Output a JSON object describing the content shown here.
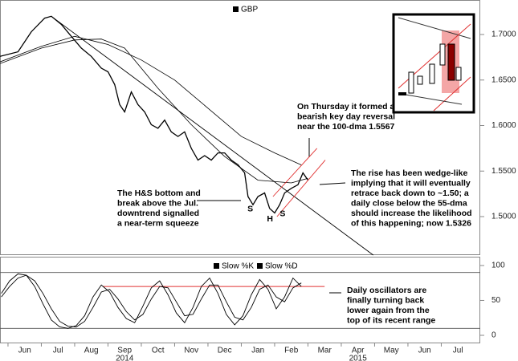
{
  "chart_data": {
    "type": "line",
    "legend": "GBP",
    "xlim": [
      -0.24,
      14.17
    ],
    "xtick_labels": [
      "Jun",
      "Jul",
      "Aug",
      "Sep",
      "Oct",
      "Nov",
      "Dec",
      "Jan",
      "Feb",
      "Mar",
      "Apr",
      "May",
      "Jun",
      "Jul"
    ],
    "years": [
      {
        "value": 3,
        "label": "2014"
      },
      {
        "value": 10,
        "label": "2015"
      }
    ],
    "ylim": [
      1.4577,
      1.7379
    ],
    "yticks": [
      {
        "value": 1.5,
        "label": "1.5000"
      },
      {
        "value": 1.55,
        "label": "1.5500"
      },
      {
        "value": 1.6,
        "label": "1.6000"
      },
      {
        "value": 1.65,
        "label": "1.6500"
      },
      {
        "value": 1.7,
        "label": "1.7000"
      }
    ],
    "series": [
      {
        "name": "GBP",
        "color": "#000000",
        "x": [
          -0.24,
          0.3,
          0.7,
          1.1,
          1.3,
          1.6,
          1.9,
          2.2,
          2.5,
          2.8,
          3.0,
          3.2,
          3.35,
          3.5,
          3.7,
          3.9,
          4.1,
          4.3,
          4.5,
          4.7,
          4.9,
          5.1,
          5.3,
          5.5,
          5.7,
          5.9,
          6.1,
          6.3,
          6.5,
          6.7,
          6.9,
          7.1,
          7.2,
          7.35,
          7.5,
          7.7,
          7.85,
          8.0,
          8.15,
          8.3,
          8.5,
          8.7,
          8.85,
          9.0
        ],
        "values": [
          1.676,
          1.681,
          1.703,
          1.718,
          1.72,
          1.711,
          1.698,
          1.685,
          1.676,
          1.663,
          1.659,
          1.645,
          1.623,
          1.615,
          1.637,
          1.623,
          1.615,
          1.601,
          1.597,
          1.606,
          1.593,
          1.588,
          1.593,
          1.575,
          1.562,
          1.567,
          1.562,
          1.57,
          1.57,
          1.562,
          1.557,
          1.548,
          1.522,
          1.513,
          1.522,
          1.526,
          1.509,
          1.504,
          1.513,
          1.526,
          1.531,
          1.535,
          1.548,
          1.54
        ]
      },
      {
        "color": "#000000",
        "x": [
          -0.24,
          1,
          2,
          2.8,
          3.5,
          4.5,
          5.5,
          6.5,
          7.5,
          8.5,
          9
        ],
        "values": [
          1.668,
          1.685,
          1.694,
          1.695,
          1.685,
          1.641,
          1.601,
          1.566,
          1.54,
          1.537,
          1.542
        ]
      },
      {
        "color": "#000000",
        "x": [
          -0.24,
          1,
          2,
          3,
          4,
          5,
          6,
          7,
          8,
          8.8
        ],
        "values": [
          1.67,
          1.687,
          1.698,
          1.689,
          1.672,
          1.65,
          1.619,
          1.588,
          1.57,
          1.5567
        ]
      }
    ],
    "trendlines": [
      {
        "color": "#000000",
        "x": [
          1.3,
          10.96
        ],
        "values": [
          1.72,
          1.4577
        ]
      },
      {
        "color": "#e03030",
        "x": [
          8.07,
          9.52
        ],
        "values": [
          1.5,
          1.562
        ]
      },
      {
        "color": "#e03030",
        "x": [
          7.95,
          9.27
        ],
        "values": [
          1.522,
          1.575
        ]
      }
    ],
    "pattern_labels": [
      {
        "text": "S",
        "x": 7.27,
        "value": 1.508
      },
      {
        "text": "H",
        "x": 7.86,
        "value": 1.497
      },
      {
        "text": "S",
        "x": 8.24,
        "value": 1.503
      }
    ],
    "annotations": [
      {
        "lines": [
          "On Thursday it formed a",
          "bearish key day reversal",
          "near the 100-dma 1.5567"
        ]
      },
      {
        "lines": [
          "The H&S bottom and",
          "break above the Jul.",
          "downtrend signalled",
          "a near-term squeeze"
        ]
      },
      {
        "lines": [
          "The rise has been wedge-like",
          "implying that it will eventually",
          "retrace back down to ~1.50; a",
          "daily close below the 55-dma",
          "should increase the likelihood",
          "of this happening; now 1.5326"
        ]
      },
      {
        "lines": [
          "Daily oscillators are",
          "finally turning back",
          "lower again from the",
          "top of its recent range"
        ]
      }
    ],
    "oscillator": {
      "ylim": [
        -11.5,
        112.6
      ],
      "yticks": [
        0,
        50,
        100
      ],
      "bands": [
        90,
        10
      ],
      "resistance": {
        "color": "#e03030",
        "x": [
          2.85,
          9.5
        ],
        "value": 70
      },
      "x": [
        -0.2,
        0.05,
        0.3,
        0.55,
        0.8,
        1.05,
        1.3,
        1.55,
        1.8,
        2.05,
        2.3,
        2.55,
        2.8,
        3.05,
        3.3,
        3.55,
        3.8,
        4.05,
        4.3,
        4.55,
        4.8,
        5.05,
        5.3,
        5.55,
        5.8,
        6.05,
        6.3,
        6.55,
        6.8,
        7.05,
        7.3,
        7.55,
        7.8,
        8.05,
        8.3,
        8.55,
        8.8
      ],
      "series": [
        {
          "name": "Slow %K",
          "color": "#000000",
          "values": [
            60,
            78,
            88,
            86,
            70,
            45,
            22,
            12,
            10,
            14,
            28,
            55,
            72,
            62,
            40,
            24,
            18,
            42,
            68,
            78,
            58,
            32,
            18,
            40,
            70,
            82,
            60,
            30,
            15,
            28,
            58,
            80,
            66,
            38,
            55,
            82,
            70
          ]
        },
        {
          "name": "Slow %D",
          "color": "#000000",
          "values": [
            55,
            70,
            82,
            86,
            78,
            60,
            38,
            20,
            13,
            12,
            20,
            40,
            62,
            66,
            52,
            34,
            22,
            30,
            52,
            70,
            68,
            48,
            28,
            30,
            52,
            72,
            72,
            48,
            26,
            22,
            40,
            66,
            72,
            55,
            48,
            68,
            75
          ]
        }
      ]
    }
  }
}
